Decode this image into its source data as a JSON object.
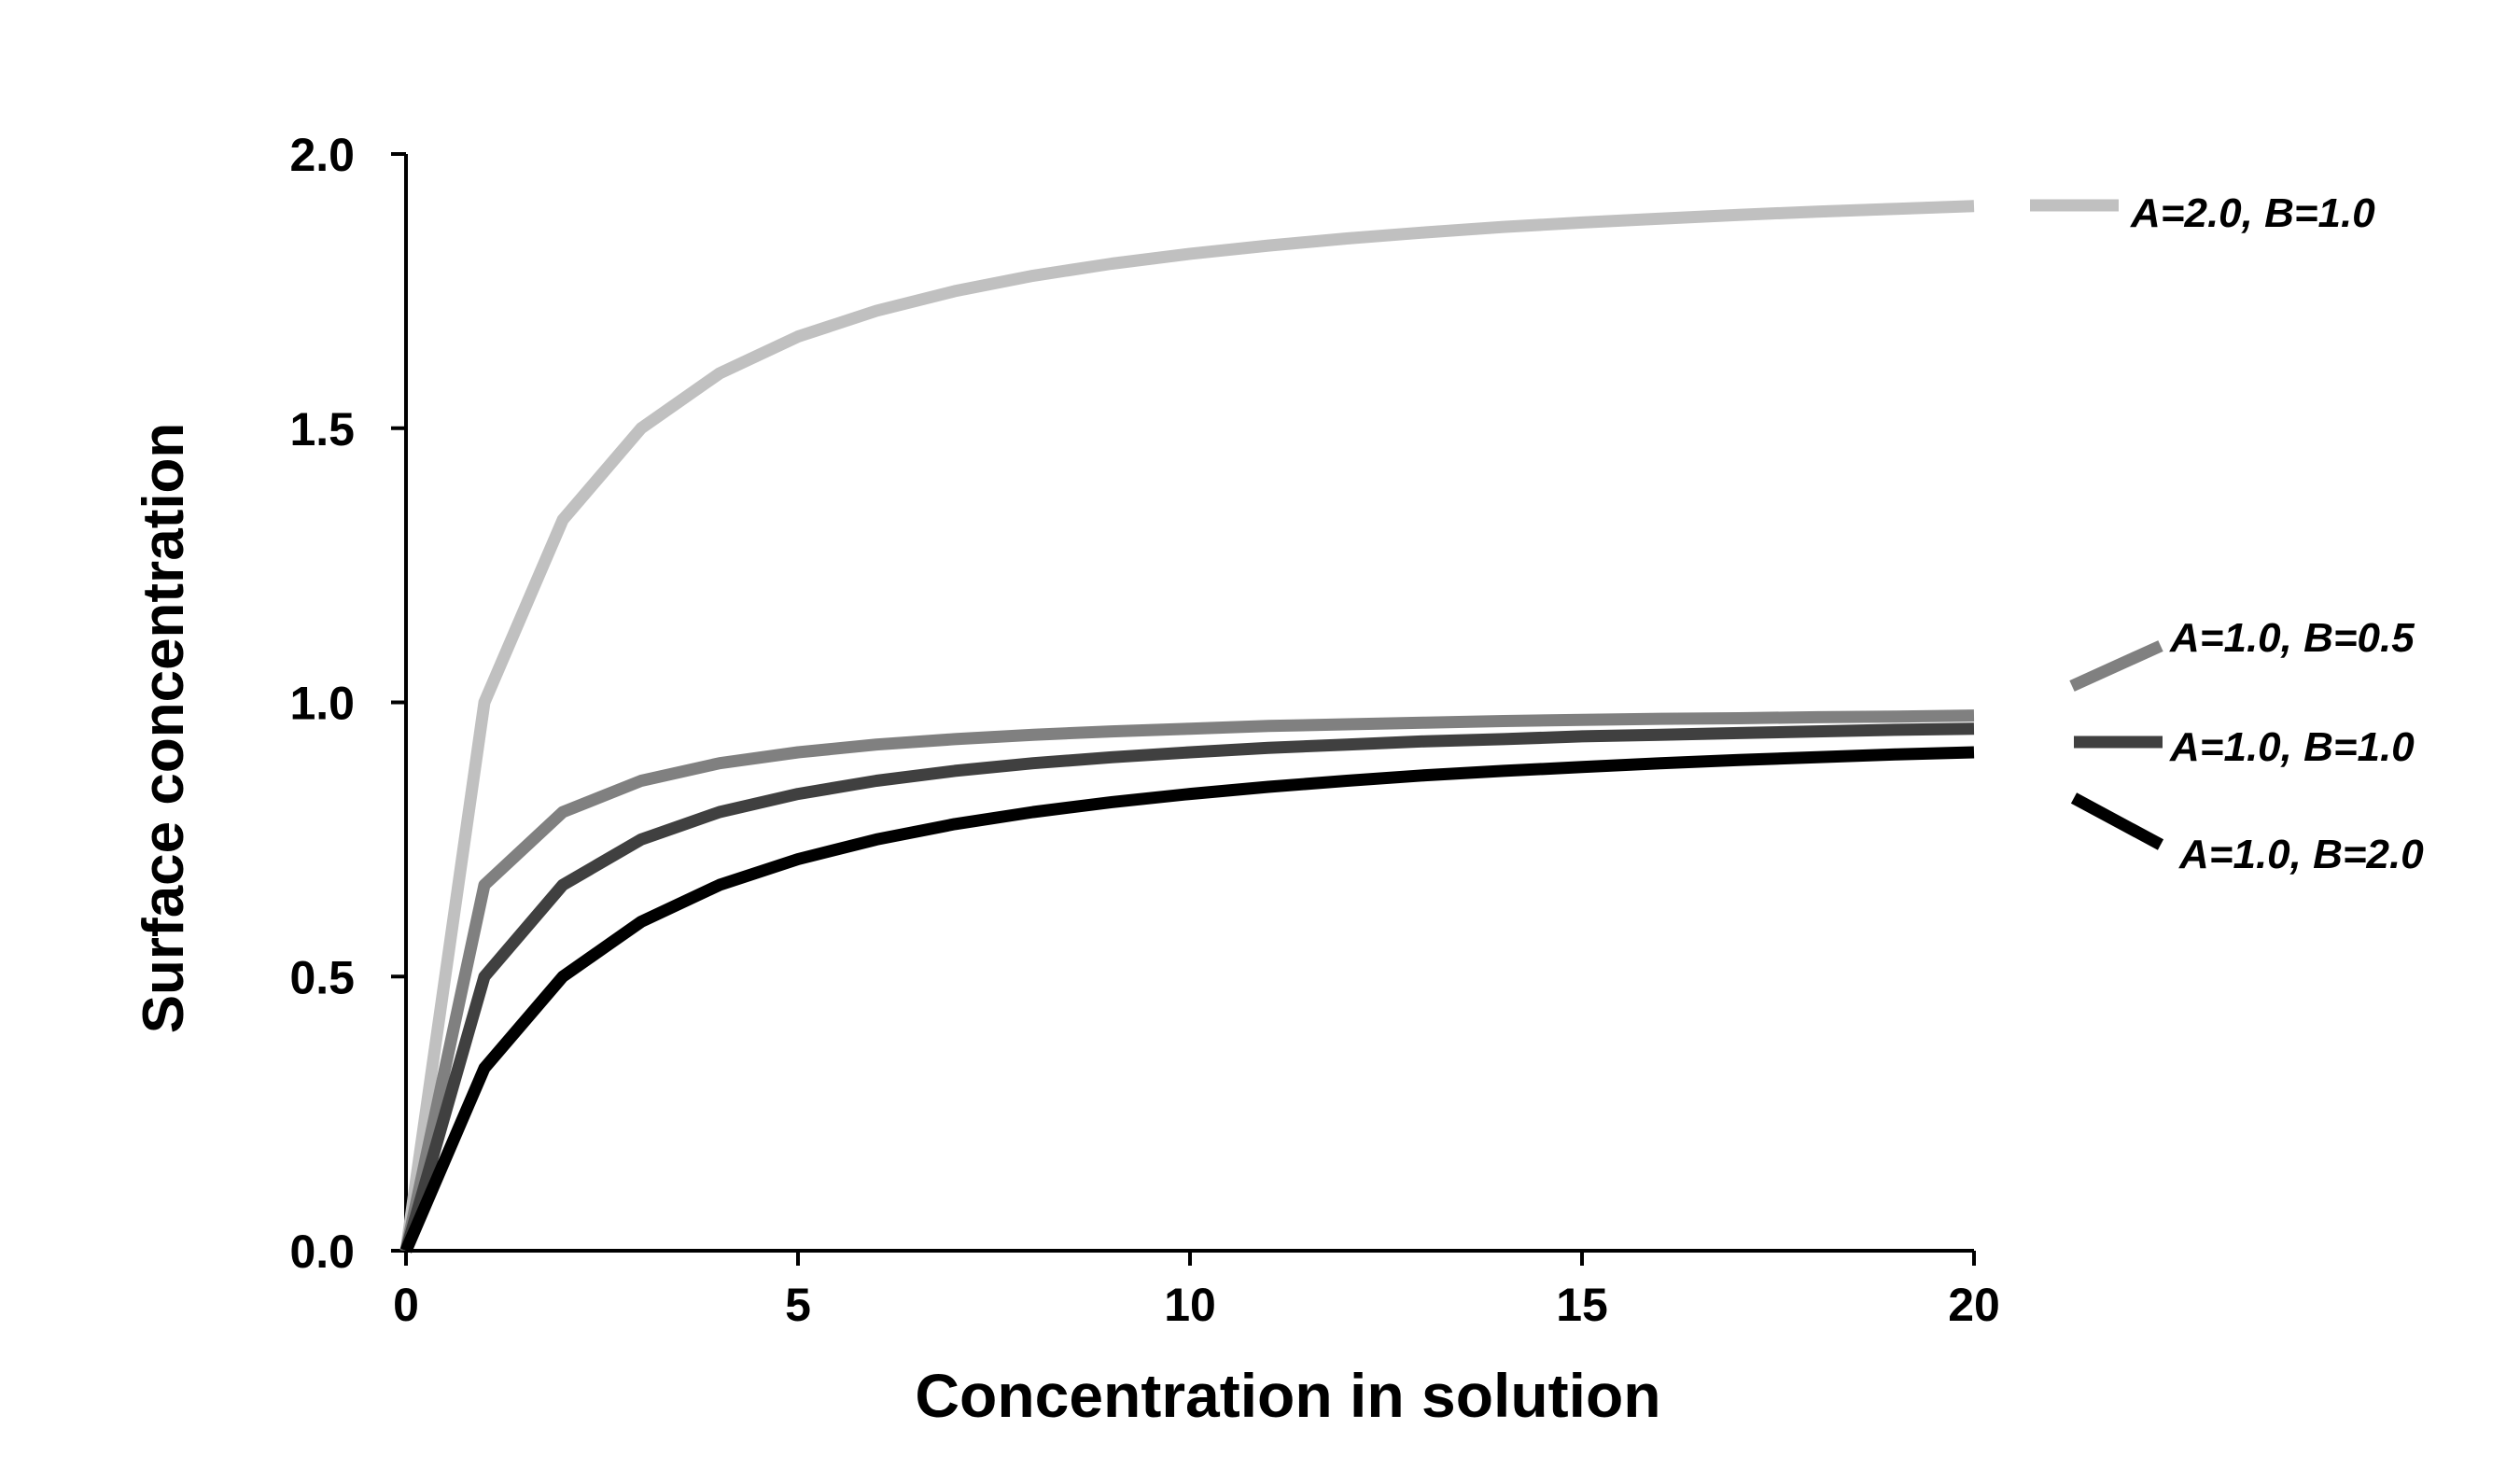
{
  "chart_data": {
    "type": "line",
    "title": "",
    "xlabel": "Concentration in solution",
    "ylabel": "Surface concentration",
    "xlim": [
      0,
      20
    ],
    "ylim": [
      0,
      2
    ],
    "x_ticks": [
      0,
      5,
      10,
      15,
      20
    ],
    "x_tick_labels": [
      "0",
      "5",
      "10",
      "15",
      "20"
    ],
    "y_ticks": [
      0,
      0.5,
      1,
      1.5,
      2
    ],
    "y_tick_labels": [
      "0.0",
      "0.5",
      "1.0",
      "1.5",
      "2.0"
    ],
    "grid": false,
    "legend_placement": "right",
    "x": [
      0,
      1,
      2,
      3,
      4,
      5,
      6,
      7,
      8,
      9,
      10,
      11,
      12,
      13,
      14,
      15,
      16,
      17,
      18,
      19,
      20
    ],
    "series": [
      {
        "name": "A=2.0, B=1.0",
        "color": "#c0c0c0",
        "values": [
          0,
          1.0,
          1.333,
          1.5,
          1.6,
          1.667,
          1.714,
          1.75,
          1.778,
          1.8,
          1.818,
          1.833,
          1.846,
          1.857,
          1.867,
          1.875,
          1.882,
          1.889,
          1.895,
          1.9,
          1.905
        ]
      },
      {
        "name": "A=1.0, B=0.5",
        "color": "#808080",
        "values": [
          0,
          0.667,
          0.8,
          0.857,
          0.889,
          0.909,
          0.923,
          0.933,
          0.941,
          0.947,
          0.952,
          0.957,
          0.96,
          0.963,
          0.966,
          0.968,
          0.97,
          0.971,
          0.973,
          0.974,
          0.976
        ]
      },
      {
        "name": "A=1.0, B=1.0",
        "color": "#404040",
        "values": [
          0,
          0.5,
          0.667,
          0.75,
          0.8,
          0.833,
          0.857,
          0.875,
          0.889,
          0.9,
          0.909,
          0.917,
          0.923,
          0.929,
          0.933,
          0.938,
          0.941,
          0.944,
          0.947,
          0.95,
          0.952
        ]
      },
      {
        "name": "A=1.0, B=2.0",
        "color": "#000000",
        "values": [
          0,
          0.333,
          0.5,
          0.6,
          0.667,
          0.714,
          0.75,
          0.778,
          0.8,
          0.818,
          0.833,
          0.846,
          0.857,
          0.867,
          0.875,
          0.882,
          0.889,
          0.895,
          0.9,
          0.905,
          0.909
        ]
      }
    ]
  }
}
